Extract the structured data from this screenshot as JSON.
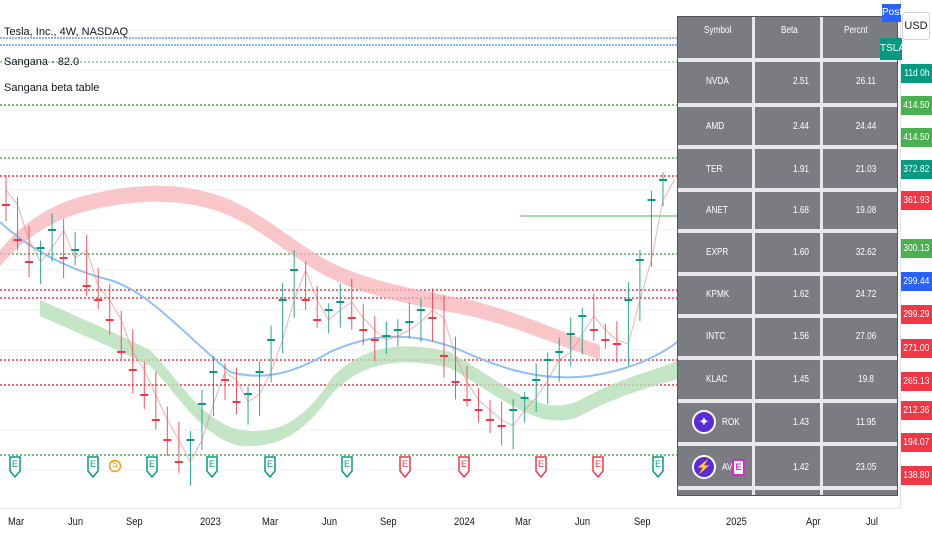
{
  "legend": {
    "symbol_line": "Tesla, Inc., 4W, NASDAQ",
    "indicator_1": "Sangana - 82.0",
    "indicator_2": "Sangana beta table"
  },
  "top_right": {
    "currency_button": "USD",
    "post_label": "Post",
    "ticker_label": "TSLA"
  },
  "beta_table": {
    "headers": [
      "Symbol",
      "Beta",
      "Percnt"
    ],
    "rows": [
      {
        "symbol": "NVDA",
        "beta": "2.51",
        "percent": "26.11"
      },
      {
        "symbol": "AMD",
        "beta": "2.44",
        "percent": "24.44"
      },
      {
        "symbol": "TER",
        "beta": "1.91",
        "percent": "21.03"
      },
      {
        "symbol": "ANET",
        "beta": "1.68",
        "percent": "19.08"
      },
      {
        "symbol": "EXPR",
        "beta": "1.60",
        "percent": "32.62"
      },
      {
        "symbol": "KPMK",
        "beta": "1.62",
        "percent": "24.72"
      },
      {
        "symbol": "INTC",
        "beta": "1.56",
        "percent": "27.06"
      },
      {
        "symbol": "KLAC",
        "beta": "1.45",
        "percent": "19.8"
      },
      {
        "symbol": "ROK",
        "beta": "1.43",
        "percent": "11.95"
      },
      {
        "symbol": "AVGO",
        "beta": "1.42",
        "percent": "23.05"
      }
    ]
  },
  "price_scale": {
    "labels": [
      {
        "text": "11d 0h",
        "color": "#089981"
      },
      {
        "text": "414.50",
        "color": "#4caf50"
      },
      {
        "text": "414.50",
        "color": "#4caf50"
      },
      {
        "text": "372.82",
        "color": "#089981"
      },
      {
        "text": "361.93",
        "color": "#f23645"
      },
      {
        "text": "300.13",
        "color": "#4caf50"
      },
      {
        "text": "299.44",
        "color": "#2962ff"
      },
      {
        "text": "299.29",
        "color": "#f23645"
      },
      {
        "text": "271.00",
        "color": "#f23645"
      },
      {
        "text": "265.13",
        "color": "#f23645"
      },
      {
        "text": "212.36",
        "color": "#f23645"
      },
      {
        "text": "194.07",
        "color": "#f23645"
      },
      {
        "text": "138.80",
        "color": "#f23645"
      }
    ]
  },
  "time_axis": {
    "labels": [
      "Mar",
      "Jun",
      "Sep",
      "2023",
      "Mar",
      "Jun",
      "Sep",
      "2024",
      "Mar",
      "Jun",
      "Sep",
      "2025",
      "Apr",
      "Jul"
    ]
  },
  "events": {
    "earnings_label": "E",
    "split_label": "S"
  },
  "colors": {
    "up": "#089981",
    "down": "#f23645",
    "support": "#4caf50",
    "resistance": "#f23645",
    "ma_band_red": "#f7b3b8",
    "ma_band_green": "#b7dfb9",
    "ma_line_blue": "#90bff5",
    "table_bg": "#7b7c82"
  }
}
